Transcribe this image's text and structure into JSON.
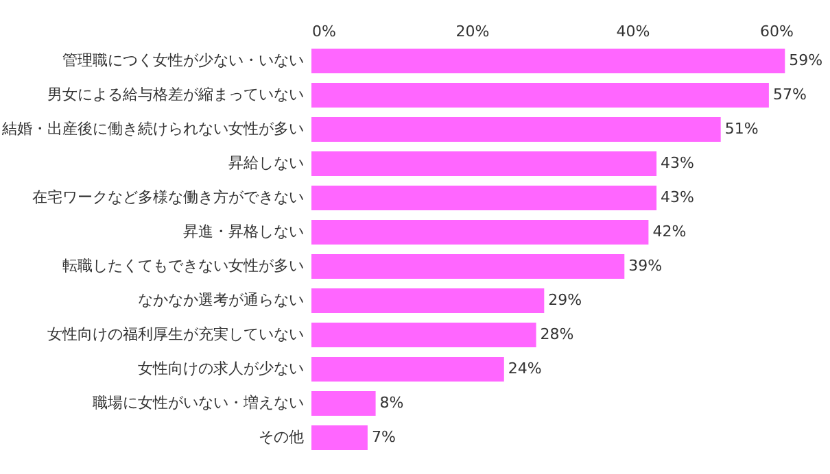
{
  "chart_data": {
    "type": "bar",
    "orientation": "horizontal",
    "categories": [
      "管理職につく女性が少ない・いない",
      "男女による給与格差が縮まっていない",
      "結婚・出産後に働き続けられない女性が多い",
      "昇給しない",
      "在宅ワークなど多様な働き方ができない",
      "昇進・昇格しない",
      "転職したくてもできない女性が多い",
      "なかなか選考が通らない",
      "女性向けの福利厚生が充実していない",
      "女性向けの求人が少ない",
      "職場に女性がいない・増えない",
      "その他"
    ],
    "values": [
      59,
      57,
      51,
      43,
      43,
      42,
      39,
      29,
      28,
      24,
      8,
      7
    ],
    "value_labels": [
      "59%",
      "57%",
      "51%",
      "43%",
      "43%",
      "42%",
      "39%",
      "29%",
      "28%",
      "24%",
      "8%",
      "7%"
    ],
    "color": "#ff66ff",
    "xlim": [
      0,
      60
    ],
    "xticks": [
      {
        "value": 0,
        "label": "0%"
      },
      {
        "value": 20,
        "label": "20%"
      },
      {
        "value": 40,
        "label": "40%"
      },
      {
        "value": 60,
        "label": "60%"
      }
    ],
    "grid": false
  }
}
